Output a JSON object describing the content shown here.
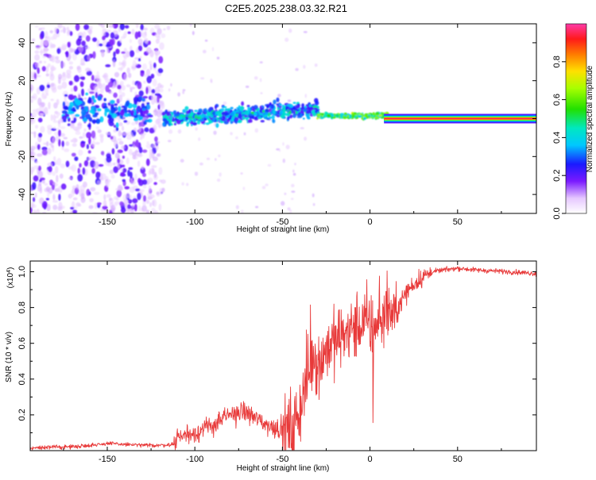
{
  "title": "C2E5.2025.238.03.32.R21",
  "chart_data": [
    {
      "type": "heatmap",
      "name": "spectrogram",
      "xlabel": "Height of straight line (km)",
      "ylabel": "Frequency (Hz)",
      "xlim": [
        -194,
        95
      ],
      "ylim": [
        -50,
        50
      ],
      "xticks": [
        -150,
        -100,
        -50,
        0,
        50
      ],
      "yticks": [
        -40,
        -20,
        0,
        20,
        40
      ],
      "colorbar": {
        "label": "Normalized spectral amplitude",
        "range": [
          0,
          1
        ],
        "ticks": [
          "0.0",
          "0.2",
          "0.4",
          "0.6",
          "0.8"
        ],
        "tick_values": [
          0.0,
          0.2,
          0.4,
          0.6,
          0.8
        ]
      },
      "features": [
        {
          "x_range": [
            -194,
            -118
          ],
          "freq_range": [
            -50,
            50
          ],
          "amplitude": 0.08,
          "kind": "broadband noise"
        },
        {
          "x_range": [
            -118,
            -30
          ],
          "center_freq": [
            0,
            6
          ],
          "amplitude": 0.3,
          "kind": "emerging tone"
        },
        {
          "x_range": [
            -30,
            10
          ],
          "center_freq": 1,
          "amplitude": 0.55,
          "kind": "tone"
        },
        {
          "x_range": [
            10,
            95
          ],
          "center_freq": 0,
          "amplitude": 0.95,
          "kind": "steady tone"
        }
      ]
    },
    {
      "type": "line",
      "name": "snr",
      "xlabel": "Height of straight line (km)",
      "ylabel": "SNR (10 * v/v)",
      "y_exponent": "(x10",
      "y_exponent_power": "4",
      "xlim": [
        -194,
        95
      ],
      "ylim": [
        0,
        1.06
      ],
      "xticks": [
        -150,
        -100,
        -50,
        0,
        50
      ],
      "yticks": [
        0.2,
        0.4,
        0.6,
        0.8,
        1.0
      ],
      "ytick_labels": [
        "0.2",
        "0.4",
        "0.6",
        "0.8",
        "1.0"
      ],
      "color": "#e83a3a",
      "series": [
        {
          "name": "SNR",
          "x": [
            -194,
            -180,
            -170,
            -160,
            -150,
            -140,
            -130,
            -120,
            -112,
            -110,
            -100,
            -90,
            -80,
            -72,
            -65,
            -58,
            -50,
            -44,
            -40,
            -36,
            -32,
            -30,
            -26,
            -22,
            -18,
            -14,
            -10,
            -6,
            -2,
            2,
            6,
            10,
            14,
            18,
            22,
            26,
            30,
            36,
            42,
            50,
            60,
            70,
            80,
            95
          ],
          "y": [
            0.015,
            0.02,
            0.022,
            0.03,
            0.04,
            0.035,
            0.03,
            0.03,
            0.035,
            0.08,
            0.1,
            0.14,
            0.2,
            0.22,
            0.18,
            0.14,
            0.12,
            0.1,
            0.25,
            0.4,
            0.55,
            0.5,
            0.55,
            0.6,
            0.62,
            0.66,
            0.68,
            0.7,
            0.72,
            0.68,
            0.74,
            0.8,
            0.74,
            0.84,
            0.9,
            0.94,
            0.97,
            1.0,
            1.01,
            1.02,
            1.01,
            1.005,
            1.0,
            0.99
          ]
        }
      ]
    }
  ]
}
